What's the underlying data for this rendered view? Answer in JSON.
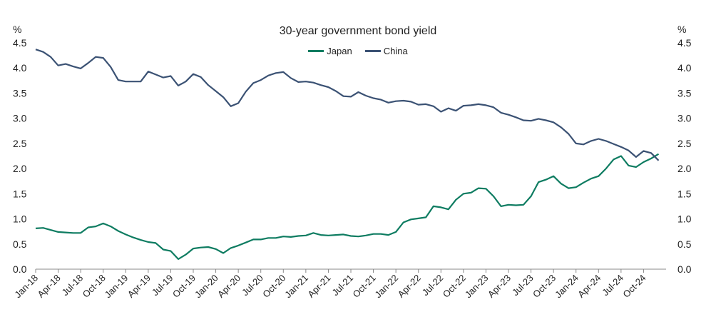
{
  "chart_data": {
    "type": "line",
    "title": "30-year government bond yield",
    "y_unit_left": "%",
    "y_unit_right": "%",
    "ylim": [
      0.0,
      4.5
    ],
    "yticks": [
      "0.0",
      "0.5",
      "1.0",
      "1.5",
      "2.0",
      "2.5",
      "3.0",
      "3.5",
      "4.0",
      "4.5"
    ],
    "x_tick_labels": [
      "Jan-18",
      "Apr-18",
      "Jul-18",
      "Oct-18",
      "Jan-19",
      "Apr-19",
      "Jul-19",
      "Oct-19",
      "Jan-20",
      "Apr-20",
      "Jul-20",
      "Oct-20",
      "Jan-21",
      "Apr-21",
      "Jul-21",
      "Oct-21",
      "Jan-22",
      "Apr-22",
      "Jul-22",
      "Oct-22",
      "Jan-23",
      "Apr-23",
      "Jul-23",
      "Oct-23",
      "Jan-24",
      "Apr-24",
      "Jul-24",
      "Oct-24"
    ],
    "grid": false,
    "legend_position": "top-center",
    "colors": {
      "Japan": "#0e7c61",
      "China": "#3b5274"
    },
    "series": [
      {
        "name": "Japan",
        "x": [
          "2018-01",
          "2018-02",
          "2018-03",
          "2018-04",
          "2018-05",
          "2018-06",
          "2018-07",
          "2018-08",
          "2018-09",
          "2018-10",
          "2018-11",
          "2018-12",
          "2019-01",
          "2019-02",
          "2019-03",
          "2019-04",
          "2019-05",
          "2019-06",
          "2019-07",
          "2019-08",
          "2019-09",
          "2019-10",
          "2019-11",
          "2019-12",
          "2020-01",
          "2020-02",
          "2020-03",
          "2020-04",
          "2020-05",
          "2020-06",
          "2020-07",
          "2020-08",
          "2020-09",
          "2020-10",
          "2020-11",
          "2020-12",
          "2021-01",
          "2021-02",
          "2021-03",
          "2021-04",
          "2021-05",
          "2021-06",
          "2021-07",
          "2021-08",
          "2021-09",
          "2021-10",
          "2021-11",
          "2021-12",
          "2022-01",
          "2022-02",
          "2022-03",
          "2022-04",
          "2022-05",
          "2022-06",
          "2022-07",
          "2022-08",
          "2022-09",
          "2022-10",
          "2022-11",
          "2022-12",
          "2023-01",
          "2023-02",
          "2023-03",
          "2023-04",
          "2023-05",
          "2023-06",
          "2023-07",
          "2023-08",
          "2023-09",
          "2023-10",
          "2023-11",
          "2023-12",
          "2024-01",
          "2024-02",
          "2024-03",
          "2024-04",
          "2024-05",
          "2024-06",
          "2024-07",
          "2024-08",
          "2024-09",
          "2024-10",
          "2024-11",
          "2024-12"
        ],
        "values": [
          0.81,
          0.82,
          0.78,
          0.74,
          0.73,
          0.72,
          0.72,
          0.83,
          0.85,
          0.91,
          0.85,
          0.76,
          0.69,
          0.63,
          0.58,
          0.54,
          0.52,
          0.39,
          0.36,
          0.2,
          0.29,
          0.41,
          0.43,
          0.44,
          0.4,
          0.32,
          0.42,
          0.47,
          0.53,
          0.59,
          0.59,
          0.62,
          0.62,
          0.65,
          0.64,
          0.66,
          0.67,
          0.72,
          0.68,
          0.67,
          0.68,
          0.69,
          0.66,
          0.65,
          0.67,
          0.7,
          0.7,
          0.68,
          0.74,
          0.93,
          0.99,
          1.01,
          1.03,
          1.25,
          1.23,
          1.19,
          1.38,
          1.5,
          1.52,
          1.61,
          1.6,
          1.45,
          1.25,
          1.28,
          1.27,
          1.28,
          1.45,
          1.73,
          1.78,
          1.85,
          1.7,
          1.61,
          1.63,
          1.72,
          1.8,
          1.85,
          2.0,
          2.18,
          2.25,
          2.06,
          2.03,
          2.13,
          2.2,
          2.29
        ]
      },
      {
        "name": "China",
        "x": [
          "2018-01",
          "2018-02",
          "2018-03",
          "2018-04",
          "2018-05",
          "2018-06",
          "2018-07",
          "2018-08",
          "2018-09",
          "2018-10",
          "2018-11",
          "2018-12",
          "2019-01",
          "2019-02",
          "2019-03",
          "2019-04",
          "2019-05",
          "2019-06",
          "2019-07",
          "2019-08",
          "2019-09",
          "2019-10",
          "2019-11",
          "2019-12",
          "2020-01",
          "2020-02",
          "2020-03",
          "2020-04",
          "2020-05",
          "2020-06",
          "2020-07",
          "2020-08",
          "2020-09",
          "2020-10",
          "2020-11",
          "2020-12",
          "2021-01",
          "2021-02",
          "2021-03",
          "2021-04",
          "2021-05",
          "2021-06",
          "2021-07",
          "2021-08",
          "2021-09",
          "2021-10",
          "2021-11",
          "2021-12",
          "2022-01",
          "2022-02",
          "2022-03",
          "2022-04",
          "2022-05",
          "2022-06",
          "2022-07",
          "2022-08",
          "2022-09",
          "2022-10",
          "2022-11",
          "2022-12",
          "2023-01",
          "2023-02",
          "2023-03",
          "2023-04",
          "2023-05",
          "2023-06",
          "2023-07",
          "2023-08",
          "2023-09",
          "2023-10",
          "2023-11",
          "2023-12",
          "2024-01",
          "2024-02",
          "2024-03",
          "2024-04",
          "2024-05",
          "2024-06",
          "2024-07",
          "2024-08",
          "2024-09",
          "2024-10",
          "2024-11",
          "2024-12"
        ],
        "values": [
          4.37,
          4.32,
          4.22,
          4.05,
          4.08,
          4.03,
          3.99,
          4.1,
          4.22,
          4.2,
          4.02,
          3.76,
          3.73,
          3.73,
          3.73,
          3.93,
          3.87,
          3.81,
          3.84,
          3.65,
          3.73,
          3.88,
          3.82,
          3.66,
          3.54,
          3.42,
          3.24,
          3.3,
          3.53,
          3.7,
          3.76,
          3.85,
          3.9,
          3.92,
          3.8,
          3.72,
          3.73,
          3.71,
          3.66,
          3.62,
          3.54,
          3.44,
          3.43,
          3.52,
          3.45,
          3.4,
          3.37,
          3.31,
          3.34,
          3.35,
          3.33,
          3.27,
          3.28,
          3.24,
          3.13,
          3.2,
          3.15,
          3.25,
          3.26,
          3.28,
          3.26,
          3.22,
          3.11,
          3.07,
          3.02,
          2.96,
          2.95,
          2.99,
          2.96,
          2.92,
          2.82,
          2.69,
          2.5,
          2.48,
          2.55,
          2.59,
          2.55,
          2.49,
          2.43,
          2.36,
          2.23,
          2.35,
          2.31,
          2.16
        ]
      }
    ]
  }
}
